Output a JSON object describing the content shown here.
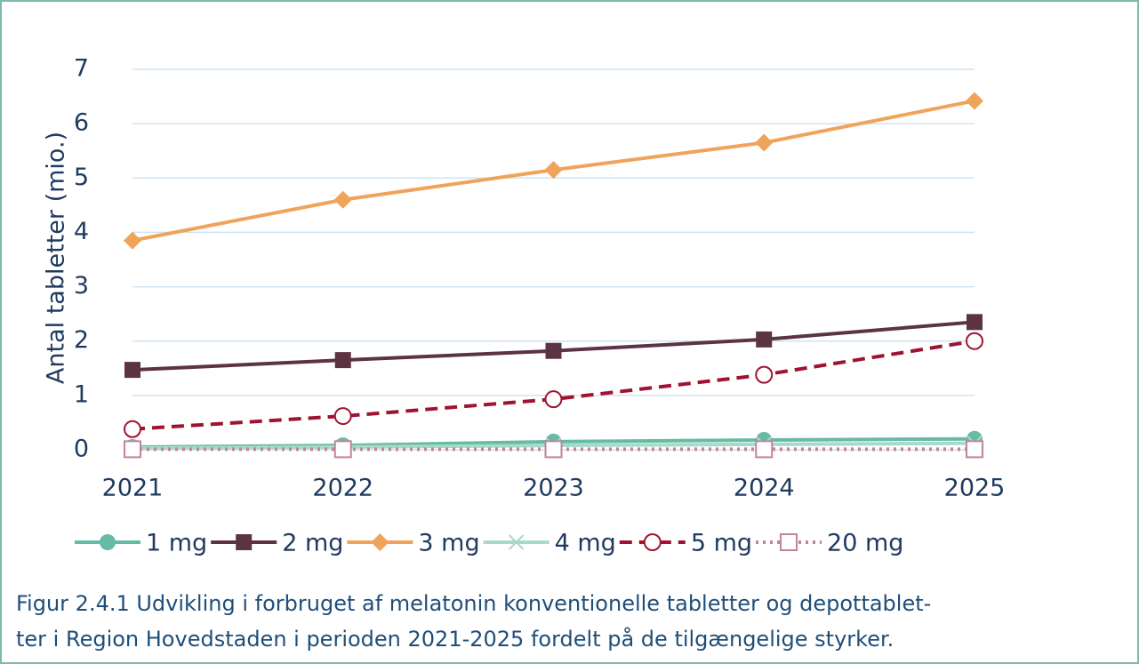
{
  "chart_data": {
    "type": "line",
    "ylabel": "Antal tabletter (mio.)",
    "categories": [
      "2021",
      "2022",
      "2023",
      "2024",
      "2025"
    ],
    "ylim": [
      0,
      7
    ],
    "yticks": [
      0,
      1,
      2,
      3,
      4,
      5,
      6,
      7
    ],
    "grid": true,
    "series": [
      {
        "name": "1 mg",
        "color": "#66bba6",
        "marker": "circle",
        "dash": "solid",
        "values": [
          0.05,
          0.08,
          0.15,
          0.18,
          0.2
        ]
      },
      {
        "name": "2 mg",
        "color": "#5b3341",
        "marker": "square",
        "dash": "solid",
        "values": [
          1.47,
          1.65,
          1.82,
          2.03,
          2.35
        ]
      },
      {
        "name": "3 mg",
        "color": "#f0a35a",
        "marker": "diamond",
        "dash": "solid",
        "values": [
          3.85,
          4.6,
          5.15,
          5.65,
          6.42
        ]
      },
      {
        "name": "4 mg",
        "color": "#a9d9c9",
        "marker": "x",
        "dash": "solid",
        "values": [
          0.03,
          0.05,
          0.08,
          0.1,
          0.12
        ]
      },
      {
        "name": "5 mg",
        "color": "#9e1430",
        "marker": "open-circle",
        "dash": "dashed",
        "values": [
          0.38,
          0.62,
          0.93,
          1.38,
          2.0
        ]
      },
      {
        "name": "20 mg",
        "color": "#c2849c",
        "marker": "open-square",
        "dash": "dotted",
        "values": [
          0.01,
          0.01,
          0.01,
          0.01,
          0.01
        ]
      }
    ],
    "caption": [
      "Figur 2.4.1 Udvikling i forbruget af melatonin konventionelle tabletter og depottablet-",
      "ter i Region Hovedstaden i perioden 2021-2025 fordelt på de tilgængelige styrker."
    ]
  }
}
